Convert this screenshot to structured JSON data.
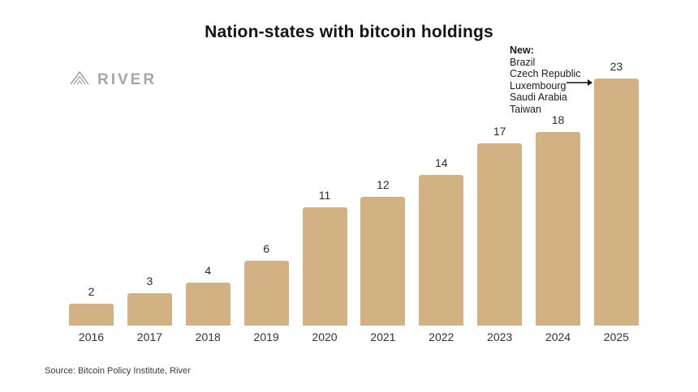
{
  "title": "Nation-states with bitcoin holdings",
  "logo": {
    "brand": "RIVER",
    "icon": "river-mountain-icon"
  },
  "annotation": {
    "heading": "New:",
    "items": [
      "Brazil",
      "Czech Republic",
      "Luxembourg",
      "Saudi Arabia",
      "Taiwan"
    ],
    "arrow_icon": "arrow-right"
  },
  "source": "Source: Bitcoin Policy Institute, River",
  "colors": {
    "bar": "#d2b283",
    "title": "#141414",
    "logo": "#a7a7a7"
  },
  "chart_data": {
    "type": "bar",
    "categories": [
      "2016",
      "2017",
      "2018",
      "2019",
      "2020",
      "2021",
      "2022",
      "2023",
      "2024",
      "2025"
    ],
    "values": [
      2,
      3,
      4,
      6,
      11,
      12,
      14,
      17,
      18,
      23
    ],
    "title": "Nation-states with bitcoin holdings",
    "xlabel": "",
    "ylabel": "",
    "ylim": [
      0,
      23
    ],
    "grid": false,
    "legend": false,
    "bar_color": "#d2b283",
    "value_labels": true,
    "annotation_target_category": "2025"
  }
}
